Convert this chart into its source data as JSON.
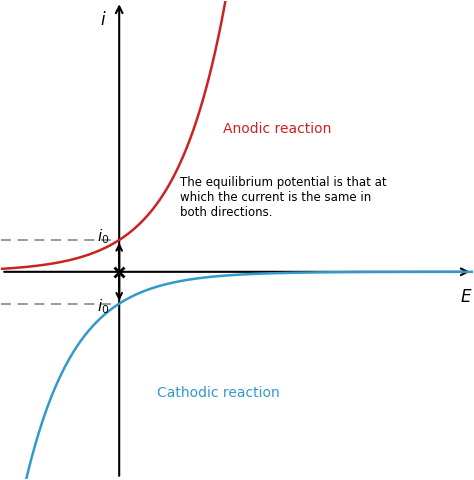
{
  "background_color": "#ffffff",
  "anodic_color": "#cc2222",
  "cathodic_color": "#3399cc",
  "axis_color": "#000000",
  "dashed_color": "#888888",
  "arrow_color": "#000000",
  "label_i": "i",
  "label_E": "E",
  "anodic_label": "Anodic reaction",
  "cathodic_label": "Cathodic reaction",
  "annotation_text": "The equilibrium potential is that at\nwhich the current is the same in\nboth directions.",
  "eq_x": 0.0,
  "eq_y_pos": 1.0,
  "eq_y_neg": -1.0,
  "alpha": 0.95,
  "xlim": [
    -2.5,
    7.5
  ],
  "ylim": [
    -6.5,
    8.5
  ],
  "figsize": [
    4.74,
    4.8
  ],
  "dpi": 100
}
